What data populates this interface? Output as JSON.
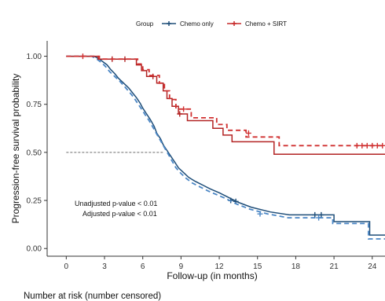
{
  "chart_data": {
    "type": "line",
    "xlabel": "Follow-up (in months)",
    "ylabel": "Progression-free survival probability",
    "xlim": [
      -1.5,
      25
    ],
    "ylim": [
      -0.04,
      1.08
    ],
    "x_ticks": [
      0,
      3,
      6,
      9,
      12,
      15,
      18,
      21,
      24
    ],
    "y_ticks": [
      0.0,
      0.25,
      0.5,
      0.75,
      1.0
    ],
    "y_tick_labels": [
      "0.00",
      "0.25",
      "0.50",
      "0.75",
      "1.00"
    ],
    "grid": false,
    "legend": {
      "title": "Group",
      "position": "top",
      "entries": [
        "Chemo only",
        "Chemo + SIRT"
      ]
    },
    "median_reference": {
      "y": 0.5,
      "x_end": 7.6
    },
    "annotations": [
      "Unadjusted p-value < 0.01",
      "Adjusted p-value < 0.01"
    ],
    "risk_table_title": "Number at risk (number censored)",
    "series": [
      {
        "name": "Chemo only",
        "color": "#1f4e79",
        "style": "solid",
        "points": [
          [
            0,
            1.0
          ],
          [
            2.2,
            1.0
          ],
          [
            2.6,
            0.985
          ],
          [
            2.9,
            0.97
          ],
          [
            3.2,
            0.955
          ],
          [
            3.5,
            0.93
          ],
          [
            3.8,
            0.91
          ],
          [
            4.1,
            0.885
          ],
          [
            4.5,
            0.86
          ],
          [
            4.9,
            0.835
          ],
          [
            5.2,
            0.81
          ],
          [
            5.5,
            0.785
          ],
          [
            5.8,
            0.755
          ],
          [
            6.0,
            0.73
          ],
          [
            6.3,
            0.7
          ],
          [
            6.6,
            0.67
          ],
          [
            6.9,
            0.635
          ],
          [
            7.1,
            0.6
          ],
          [
            7.4,
            0.57
          ],
          [
            7.6,
            0.54
          ],
          [
            7.9,
            0.51
          ],
          [
            8.2,
            0.48
          ],
          [
            8.5,
            0.45
          ],
          [
            8.8,
            0.42
          ],
          [
            9.2,
            0.395
          ],
          [
            9.6,
            0.37
          ],
          [
            10.1,
            0.35
          ],
          [
            10.7,
            0.33
          ],
          [
            11.3,
            0.31
          ],
          [
            12.0,
            0.29
          ],
          [
            12.6,
            0.27
          ],
          [
            13.5,
            0.24
          ],
          [
            14.5,
            0.215
          ],
          [
            16.0,
            0.19
          ],
          [
            17.5,
            0.175
          ],
          [
            21.0,
            0.175
          ],
          [
            21.0,
            0.14
          ],
          [
            23.8,
            0.14
          ],
          [
            23.8,
            0.07
          ],
          [
            25,
            0.07
          ]
        ],
        "censored": [
          [
            12.9,
            0.25
          ],
          [
            13.3,
            0.245
          ],
          [
            19.5,
            0.175
          ],
          [
            20.0,
            0.175
          ]
        ]
      },
      {
        "name": "Chemo only",
        "color": "#4a86c5",
        "style": "dashed",
        "points": [
          [
            0,
            1.0
          ],
          [
            2.0,
            1.0
          ],
          [
            2.4,
            0.985
          ],
          [
            2.8,
            0.965
          ],
          [
            3.1,
            0.945
          ],
          [
            3.4,
            0.92
          ],
          [
            3.8,
            0.895
          ],
          [
            4.2,
            0.87
          ],
          [
            4.6,
            0.84
          ],
          [
            5.0,
            0.81
          ],
          [
            5.3,
            0.785
          ],
          [
            5.6,
            0.755
          ],
          [
            5.9,
            0.725
          ],
          [
            6.2,
            0.695
          ],
          [
            6.5,
            0.665
          ],
          [
            6.8,
            0.63
          ],
          [
            7.1,
            0.595
          ],
          [
            7.4,
            0.56
          ],
          [
            7.7,
            0.525
          ],
          [
            8.0,
            0.49
          ],
          [
            8.3,
            0.455
          ],
          [
            8.6,
            0.42
          ],
          [
            9.0,
            0.39
          ],
          [
            9.4,
            0.365
          ],
          [
            9.9,
            0.34
          ],
          [
            10.5,
            0.32
          ],
          [
            11.1,
            0.3
          ],
          [
            11.8,
            0.28
          ],
          [
            12.5,
            0.26
          ],
          [
            13.4,
            0.23
          ],
          [
            14.4,
            0.205
          ],
          [
            15.8,
            0.18
          ],
          [
            17.4,
            0.16
          ],
          [
            20.9,
            0.16
          ],
          [
            20.9,
            0.13
          ],
          [
            23.7,
            0.13
          ],
          [
            23.7,
            0.05
          ],
          [
            25,
            0.05
          ]
        ],
        "censored": [
          [
            15.2,
            0.18
          ],
          [
            19.8,
            0.16
          ]
        ]
      },
      {
        "name": "Chemo + SIRT",
        "color": "#b22222",
        "style": "solid",
        "points": [
          [
            0,
            1.0
          ],
          [
            2.5,
            1.0
          ],
          [
            2.5,
            0.985
          ],
          [
            5.5,
            0.985
          ],
          [
            5.5,
            0.955
          ],
          [
            5.9,
            0.955
          ],
          [
            5.9,
            0.925
          ],
          [
            6.3,
            0.925
          ],
          [
            6.3,
            0.895
          ],
          [
            7.1,
            0.895
          ],
          [
            7.1,
            0.86
          ],
          [
            7.6,
            0.86
          ],
          [
            7.6,
            0.82
          ],
          [
            7.9,
            0.82
          ],
          [
            7.9,
            0.78
          ],
          [
            8.3,
            0.78
          ],
          [
            8.3,
            0.74
          ],
          [
            8.8,
            0.74
          ],
          [
            8.8,
            0.7
          ],
          [
            9.5,
            0.7
          ],
          [
            9.5,
            0.665
          ],
          [
            11.5,
            0.665
          ],
          [
            11.5,
            0.625
          ],
          [
            12.3,
            0.625
          ],
          [
            12.3,
            0.59
          ],
          [
            13.0,
            0.59
          ],
          [
            13.0,
            0.555
          ],
          [
            16.3,
            0.555
          ],
          [
            16.3,
            0.49
          ],
          [
            25,
            0.49
          ]
        ],
        "censored": [
          [
            3.6,
            0.985
          ],
          [
            4.6,
            0.985
          ],
          [
            6.8,
            0.895
          ],
          [
            8.9,
            0.7
          ]
        ]
      },
      {
        "name": "Chemo + SIRT",
        "color": "#d03030",
        "style": "dashed",
        "points": [
          [
            0,
            1.0
          ],
          [
            2.6,
            1.0
          ],
          [
            2.6,
            0.985
          ],
          [
            5.6,
            0.985
          ],
          [
            5.6,
            0.96
          ],
          [
            6.0,
            0.96
          ],
          [
            6.0,
            0.93
          ],
          [
            6.5,
            0.93
          ],
          [
            6.5,
            0.9
          ],
          [
            7.3,
            0.9
          ],
          [
            7.3,
            0.86
          ],
          [
            7.7,
            0.86
          ],
          [
            7.7,
            0.82
          ],
          [
            8.1,
            0.82
          ],
          [
            8.1,
            0.775
          ],
          [
            8.6,
            0.775
          ],
          [
            8.6,
            0.725
          ],
          [
            9.8,
            0.725
          ],
          [
            9.8,
            0.68
          ],
          [
            11.8,
            0.68
          ],
          [
            11.8,
            0.645
          ],
          [
            12.6,
            0.645
          ],
          [
            12.6,
            0.615
          ],
          [
            14.1,
            0.615
          ],
          [
            14.1,
            0.58
          ],
          [
            16.7,
            0.58
          ],
          [
            16.7,
            0.535
          ],
          [
            25,
            0.535
          ]
        ],
        "censored": [
          [
            1.3,
            1.0
          ],
          [
            9.2,
            0.725
          ],
          [
            14.3,
            0.6
          ],
          [
            22.8,
            0.535
          ],
          [
            23.2,
            0.535
          ],
          [
            23.6,
            0.535
          ],
          [
            24.0,
            0.535
          ],
          [
            24.4,
            0.535
          ],
          [
            24.8,
            0.535
          ]
        ]
      }
    ]
  }
}
